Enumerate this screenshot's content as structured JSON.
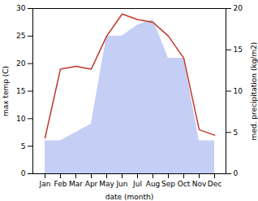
{
  "chart_data": {
    "type": "line",
    "categories": [
      "Jan",
      "Feb",
      "Mar",
      "Apr",
      "May",
      "Jun",
      "Jul",
      "Aug",
      "Sep",
      "Oct",
      "Nov",
      "Dec"
    ],
    "series": [
      {
        "type": "area",
        "color": "#c5cef5",
        "values": [
          6.0,
          6.0,
          7.5,
          9.0,
          25.0,
          25.0,
          27.0,
          28.0,
          21.0,
          21.0,
          6.0,
          6.0
        ]
      },
      {
        "type": "line",
        "color": "#c0392b",
        "values": [
          6.5,
          19.0,
          19.5,
          19.0,
          25.0,
          29.0,
          28.0,
          27.5,
          25.0,
          21.0,
          8.0,
          7.0
        ]
      }
    ],
    "xlabel": "date (month)",
    "ylabel": "max temp (C)",
    "y2label": "med. precipitation (kg/m2)",
    "ylim": [
      0,
      30
    ],
    "yticks": [
      0,
      5,
      10,
      15,
      20,
      25,
      30
    ],
    "y2lim": [
      0,
      20
    ],
    "y2ticks": [
      0,
      5,
      10,
      15,
      20
    ],
    "grid": false
  }
}
